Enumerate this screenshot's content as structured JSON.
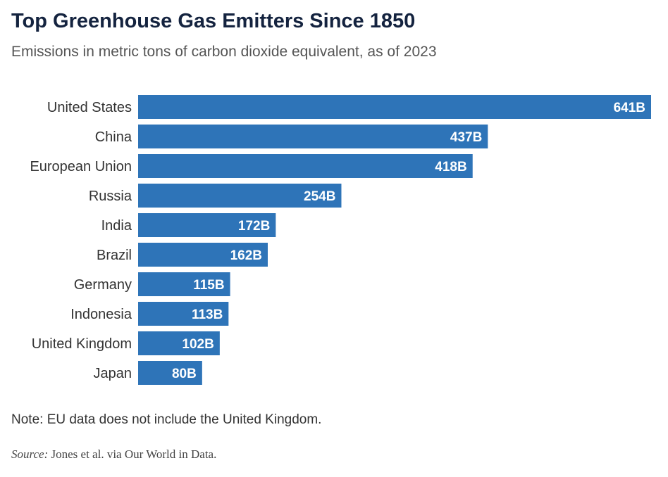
{
  "title": "Top Greenhouse Gas Emitters Since 1850",
  "subtitle": "Emissions in metric tons of carbon dioxide equivalent, as of 2023",
  "note": "Note: EU data does not include the United Kingdom.",
  "source_label": "Source:",
  "source_text": " Jones et al. via Our World in Data.",
  "colors": {
    "bar": "#2e74b8"
  },
  "chart_data": {
    "type": "bar",
    "orientation": "horizontal",
    "categories": [
      "United States",
      "China",
      "European Union",
      "Russia",
      "India",
      "Brazil",
      "Germany",
      "Indonesia",
      "United Kingdom",
      "Japan"
    ],
    "values": [
      641,
      437,
      418,
      254,
      172,
      162,
      115,
      113,
      102,
      80
    ],
    "value_labels": [
      "641B",
      "437B",
      "418B",
      "254B",
      "172B",
      "162B",
      "115B",
      "113B",
      "102B",
      "80B"
    ],
    "unit": "B",
    "xlim": [
      0,
      641
    ],
    "grid": false
  }
}
